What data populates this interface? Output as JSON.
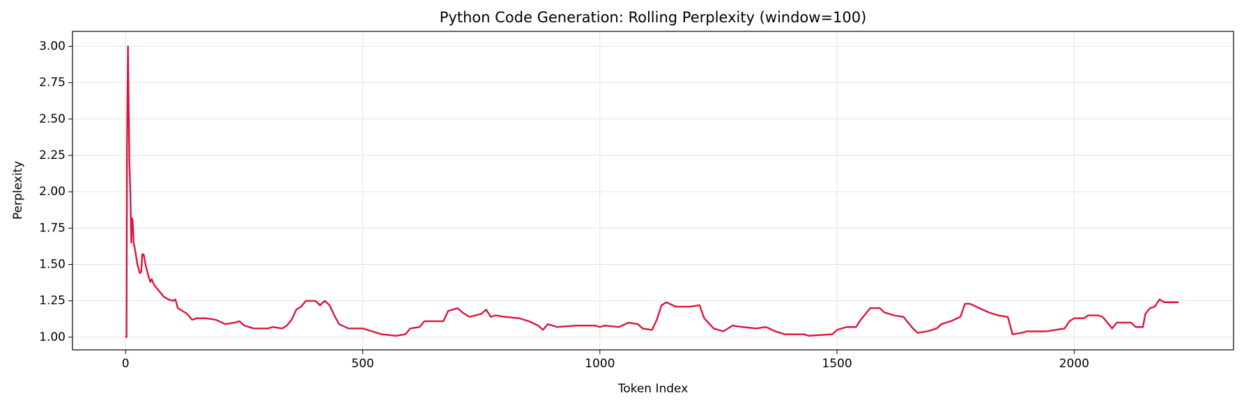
{
  "chart_data": {
    "type": "line",
    "title": "Python Code Generation: Rolling Perplexity (window=100)",
    "xlabel": "Token Index",
    "ylabel": "Perplexity",
    "color": "#dc143c",
    "grid": true,
    "xlim": [
      -112,
      2336
    ],
    "ylim": [
      0.913,
      3.103
    ],
    "xticks": [
      0,
      500,
      1000,
      1500,
      2000
    ],
    "yticks": [
      {
        "value": 1,
        "label": "1.00"
      },
      {
        "value": 1.25,
        "label": "1.25"
      },
      {
        "value": 1.5,
        "label": "1.50"
      },
      {
        "value": 1.75,
        "label": "1.75"
      },
      {
        "value": 2,
        "label": "2.00"
      },
      {
        "value": 2.25,
        "label": "2.25"
      },
      {
        "value": 2.5,
        "label": "2.50"
      },
      {
        "value": 2.75,
        "label": "2.75"
      },
      {
        "value": 3,
        "label": "3.00"
      }
    ],
    "x": [
      0,
      2,
      3,
      5,
      8,
      10,
      12,
      13,
      15,
      17,
      20,
      25,
      30,
      33,
      35,
      38,
      42,
      48,
      52,
      55,
      60,
      70,
      80,
      90,
      100,
      105,
      110,
      120,
      130,
      140,
      150,
      170,
      190,
      210,
      230,
      240,
      250,
      270,
      300,
      310,
      330,
      340,
      350,
      360,
      370,
      380,
      400,
      410,
      420,
      430,
      440,
      450,
      470,
      500,
      520,
      540,
      570,
      590,
      600,
      620,
      630,
      670,
      680,
      700,
      710,
      725,
      750,
      760,
      770,
      780,
      800,
      830,
      850,
      870,
      880,
      890,
      910,
      950,
      990,
      1000,
      1010,
      1040,
      1060,
      1080,
      1090,
      1110,
      1120,
      1130,
      1140,
      1160,
      1190,
      1210,
      1220,
      1240,
      1260,
      1280,
      1300,
      1330,
      1350,
      1370,
      1390,
      1430,
      1440,
      1490,
      1500,
      1520,
      1540,
      1550,
      1560,
      1570,
      1590,
      1600,
      1620,
      1640,
      1650,
      1660,
      1670,
      1690,
      1710,
      1720,
      1740,
      1760,
      1770,
      1780,
      1800,
      1820,
      1840,
      1860,
      1870,
      1890,
      1900,
      1940,
      1960,
      1980,
      1990,
      2000,
      2020,
      2030,
      2050,
      2060,
      2070,
      2080,
      2090,
      2120,
      2130,
      2145,
      2150,
      2160,
      2170,
      2180,
      2190,
      2210,
      2220
    ],
    "values": [
      1.01,
      1.0,
      2.3,
      3.0,
      2.2,
      2.0,
      1.65,
      1.82,
      1.8,
      1.65,
      1.6,
      1.5,
      1.44,
      1.45,
      1.57,
      1.57,
      1.5,
      1.42,
      1.38,
      1.4,
      1.36,
      1.32,
      1.28,
      1.26,
      1.25,
      1.26,
      1.2,
      1.18,
      1.16,
      1.12,
      1.13,
      1.13,
      1.12,
      1.09,
      1.1,
      1.11,
      1.08,
      1.06,
      1.06,
      1.07,
      1.06,
      1.08,
      1.12,
      1.19,
      1.21,
      1.25,
      1.25,
      1.22,
      1.25,
      1.22,
      1.15,
      1.09,
      1.06,
      1.06,
      1.04,
      1.02,
      1.01,
      1.02,
      1.06,
      1.07,
      1.11,
      1.11,
      1.18,
      1.2,
      1.17,
      1.14,
      1.16,
      1.19,
      1.14,
      1.15,
      1.14,
      1.13,
      1.11,
      1.08,
      1.05,
      1.09,
      1.07,
      1.08,
      1.08,
      1.07,
      1.08,
      1.07,
      1.1,
      1.09,
      1.06,
      1.05,
      1.12,
      1.22,
      1.24,
      1.21,
      1.21,
      1.22,
      1.13,
      1.06,
      1.04,
      1.08,
      1.07,
      1.06,
      1.07,
      1.04,
      1.02,
      1.02,
      1.01,
      1.02,
      1.05,
      1.07,
      1.07,
      1.12,
      1.16,
      1.2,
      1.2,
      1.17,
      1.15,
      1.14,
      1.1,
      1.06,
      1.03,
      1.04,
      1.06,
      1.09,
      1.11,
      1.14,
      1.23,
      1.23,
      1.2,
      1.17,
      1.15,
      1.14,
      1.02,
      1.03,
      1.04,
      1.04,
      1.05,
      1.06,
      1.11,
      1.13,
      1.13,
      1.15,
      1.15,
      1.14,
      1.1,
      1.06,
      1.1,
      1.1,
      1.07,
      1.07,
      1.16,
      1.2,
      1.21,
      1.26,
      1.24,
      1.24,
      1.24
    ]
  }
}
